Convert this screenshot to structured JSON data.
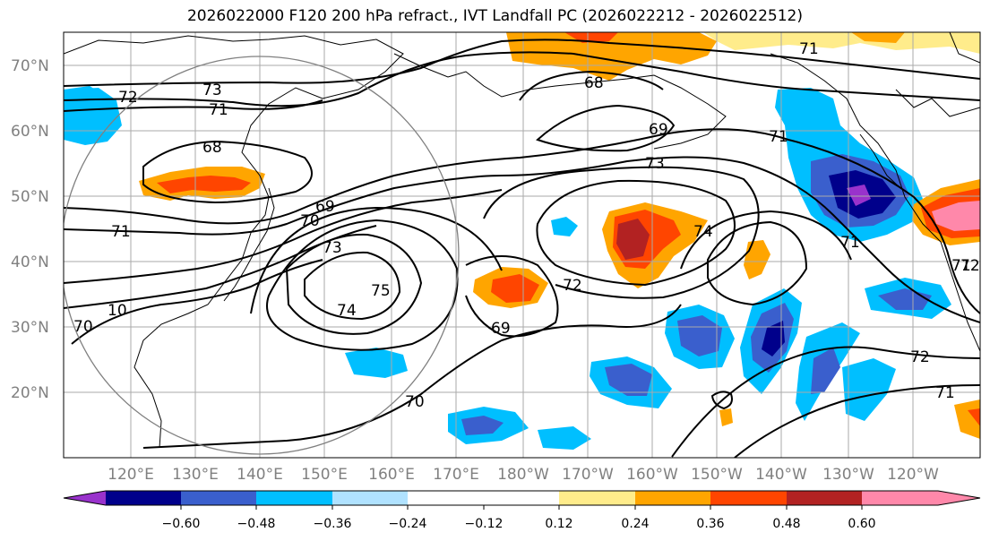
{
  "title": "2026022000 F120 200 hPa refract., IVT Landfall PC (2026022212 - 2026022512)",
  "lat_labels": [
    "70°N",
    "60°N",
    "50°N",
    "40°N",
    "30°N",
    "20°N"
  ],
  "lon_labels": [
    "120°E",
    "130°E",
    "140°E",
    "150°E",
    "160°E",
    "170°E",
    "180°W",
    "170°W",
    "160°W",
    "150°W",
    "140°W",
    "130°W",
    "120°W"
  ],
  "colorbar": {
    "labels": [
      "−0.60",
      "−0.48",
      "−0.36",
      "−0.24",
      "−0.12",
      "0.12",
      "0.24",
      "0.36",
      "0.48",
      "0.60"
    ],
    "colors": [
      "#9932cc",
      "#00008b",
      "#3a5fcd",
      "#00bfff",
      "#b0e2ff",
      "#ffffff",
      "#ffec8b",
      "#ffa500",
      "#ff4500",
      "#b22222",
      "#ff88aa"
    ]
  },
  "contour_labels": [
    {
      "text": "73"
    },
    {
      "text": "72"
    },
    {
      "text": "71"
    },
    {
      "text": "68"
    },
    {
      "text": "71"
    },
    {
      "text": "71"
    },
    {
      "text": "70"
    },
    {
      "text": "69"
    },
    {
      "text": "73"
    },
    {
      "text": "75"
    },
    {
      "text": "74"
    },
    {
      "text": "10"
    },
    {
      "text": "70"
    },
    {
      "text": "70"
    },
    {
      "text": "69"
    },
    {
      "text": "72"
    },
    {
      "text": "68"
    },
    {
      "text": "69"
    },
    {
      "text": "73"
    },
    {
      "text": "74"
    },
    {
      "text": "71"
    },
    {
      "text": "71"
    },
    {
      "text": "71"
    },
    {
      "text": "72"
    },
    {
      "text": "71"
    },
    {
      "text": "72"
    }
  ]
}
